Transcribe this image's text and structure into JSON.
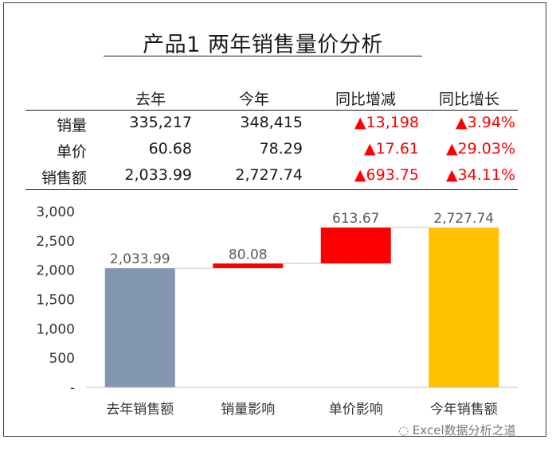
{
  "title": "产品1 两年销售量价分析",
  "table": {
    "headers": [
      "去年",
      "今年",
      "同比增减",
      "同比增长"
    ],
    "rows": [
      {
        "label": "销量",
        "last_year": "335,217",
        "this_year": "348,415",
        "diff": "▲13,198",
        "growth": "▲3.94%"
      },
      {
        "label": "单价",
        "last_year": "60.68",
        "this_year": "78.29",
        "diff": "▲17.61",
        "growth": "▲29.03%"
      },
      {
        "label": "销售额",
        "last_year": "2,033.99",
        "this_year": "2,727.74",
        "diff": "▲693.75",
        "growth": "▲34.11%"
      }
    ]
  },
  "chart_data": {
    "type": "bar",
    "subtype": "waterfall",
    "categories": [
      "去年销售额",
      "销量影响",
      "单价影响",
      "今年销售额"
    ],
    "values": [
      2033.99,
      80.08,
      613.67,
      2727.74
    ],
    "bases": [
      0,
      2033.99,
      2114.07,
      0
    ],
    "data_labels": [
      "2,033.99",
      "80.08",
      "613.67",
      "2,727.74"
    ],
    "colors": [
      "#8497b0",
      "#ff0000",
      "#ff0000",
      "#ffc000"
    ],
    "ylim": [
      0,
      3000
    ],
    "yticks": [
      0,
      500,
      1000,
      1500,
      2000,
      2500,
      3000
    ],
    "ytick_labels": [
      "-",
      "500",
      "1,000",
      "1,500",
      "2,000",
      "2,500",
      "3,000"
    ],
    "grid": false,
    "legend": "none"
  },
  "watermark": "Excel数据分析之道"
}
